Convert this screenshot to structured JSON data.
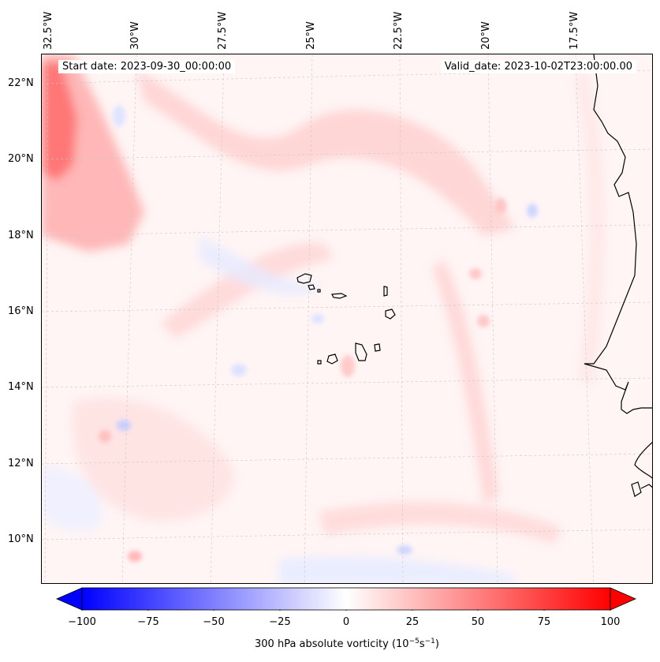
{
  "header": {
    "start_date": "Start date: 2023-09-30_00:00:00",
    "valid_date": "Valid_date: 2023-10-02T23:00:00.00"
  },
  "longitude_labels": [
    "32.5°W",
    "30°W",
    "27.5°W",
    "25°W",
    "22.5°W",
    "20°W",
    "17.5°W"
  ],
  "latitude_labels": [
    "22°N",
    "20°N",
    "18°N",
    "16°N",
    "14°N",
    "12°N",
    "10°N"
  ],
  "colorbar": {
    "tick_labels": [
      "−100",
      "−75",
      "−50",
      "−25",
      "0",
      "25",
      "50",
      "75",
      "100"
    ],
    "title_prefix": "300 hPa absolute vorticity (10",
    "exp1": "−5",
    "mid": "s",
    "exp2": "−1",
    "suffix": ")",
    "min": -100,
    "max": 100,
    "low_color": "#0000ff",
    "mid_color": "#ffffff",
    "high_color": "#ff0000"
  },
  "map": {
    "background_color": "#fff5f5",
    "coastline_color": "#000000"
  }
}
